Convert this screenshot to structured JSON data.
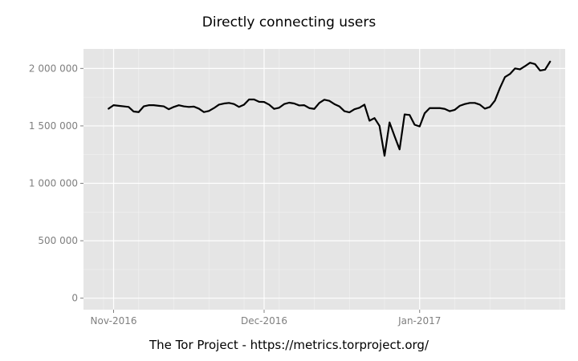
{
  "chart_data": {
    "type": "line",
    "title": "Directly connecting users",
    "caption": "The Tor Project - https://metrics.torproject.org/",
    "xlabel": "",
    "ylabel": "",
    "x_ticks": [
      {
        "date": "2016-11-01",
        "label": "Nov-2016"
      },
      {
        "date": "2016-12-01",
        "label": "Dec-2016"
      },
      {
        "date": "2017-01-01",
        "label": "Jan-2017"
      }
    ],
    "y_ticks": [
      {
        "value": 0,
        "label": "0"
      },
      {
        "value": 500000,
        "label": "500 000"
      },
      {
        "value": 1000000,
        "label": "1 000 000"
      },
      {
        "value": 1500000,
        "label": "1 500 000"
      },
      {
        "value": 2000000,
        "label": "2 000 000"
      }
    ],
    "xlim": [
      "2016-10-26",
      "2017-01-30"
    ],
    "ylim": [
      -100000,
      2170000
    ],
    "grid": true,
    "background": "#e5e5e5",
    "grid_color": "#ffffff",
    "line_color": "#000000",
    "series": [
      {
        "dates": [
          "2016-10-31",
          "2016-11-01",
          "2016-11-02",
          "2016-11-03",
          "2016-11-04",
          "2016-11-05",
          "2016-11-06",
          "2016-11-07",
          "2016-11-08",
          "2016-11-09",
          "2016-11-10",
          "2016-11-11",
          "2016-11-12",
          "2016-11-13",
          "2016-11-14",
          "2016-11-15",
          "2016-11-16",
          "2016-11-17",
          "2016-11-18",
          "2016-11-19",
          "2016-11-20",
          "2016-11-21",
          "2016-11-22",
          "2016-11-23",
          "2016-11-24",
          "2016-11-25",
          "2016-11-26",
          "2016-11-27",
          "2016-11-28",
          "2016-11-29",
          "2016-11-30",
          "2016-12-01",
          "2016-12-02",
          "2016-12-03",
          "2016-12-04",
          "2016-12-05",
          "2016-12-06",
          "2016-12-07",
          "2016-12-08",
          "2016-12-09",
          "2016-12-10",
          "2016-12-11",
          "2016-12-12",
          "2016-12-13",
          "2016-12-14",
          "2016-12-15",
          "2016-12-16",
          "2016-12-17",
          "2016-12-18",
          "2016-12-19",
          "2016-12-20",
          "2016-12-21",
          "2016-12-22",
          "2016-12-23",
          "2016-12-24",
          "2016-12-25",
          "2016-12-26",
          "2016-12-27",
          "2016-12-28",
          "2016-12-29",
          "2016-12-30",
          "2016-12-31",
          "2017-01-01",
          "2017-01-02",
          "2017-01-03",
          "2017-01-04",
          "2017-01-05",
          "2017-01-06",
          "2017-01-07",
          "2017-01-08",
          "2017-01-09",
          "2017-01-10",
          "2017-01-11",
          "2017-01-12",
          "2017-01-13",
          "2017-01-14",
          "2017-01-15",
          "2017-01-16",
          "2017-01-17",
          "2017-01-18",
          "2017-01-19",
          "2017-01-20",
          "2017-01-21",
          "2017-01-22",
          "2017-01-23",
          "2017-01-24",
          "2017-01-25",
          "2017-01-26",
          "2017-01-27"
        ],
        "values": [
          1650000,
          1680000,
          1675000,
          1670000,
          1665000,
          1625000,
          1620000,
          1670000,
          1680000,
          1680000,
          1675000,
          1670000,
          1645000,
          1665000,
          1680000,
          1670000,
          1665000,
          1668000,
          1650000,
          1620000,
          1630000,
          1655000,
          1685000,
          1695000,
          1700000,
          1690000,
          1665000,
          1685000,
          1730000,
          1730000,
          1710000,
          1708000,
          1685000,
          1648000,
          1658000,
          1690000,
          1702000,
          1695000,
          1678000,
          1680000,
          1655000,
          1648000,
          1700000,
          1728000,
          1718000,
          1690000,
          1670000,
          1628000,
          1618000,
          1645000,
          1658000,
          1685000,
          1545000,
          1568000,
          1500000,
          1240000,
          1530000,
          1410000,
          1295000,
          1600000,
          1595000,
          1510000,
          1495000,
          1610000,
          1655000,
          1655000,
          1655000,
          1648000,
          1628000,
          1640000,
          1675000,
          1690000,
          1700000,
          1700000,
          1685000,
          1650000,
          1665000,
          1720000,
          1830000,
          1925000,
          1952000,
          2000000,
          1992000,
          2020000,
          2050000,
          2038000,
          1982000,
          1990000,
          2060000
        ]
      }
    ]
  }
}
